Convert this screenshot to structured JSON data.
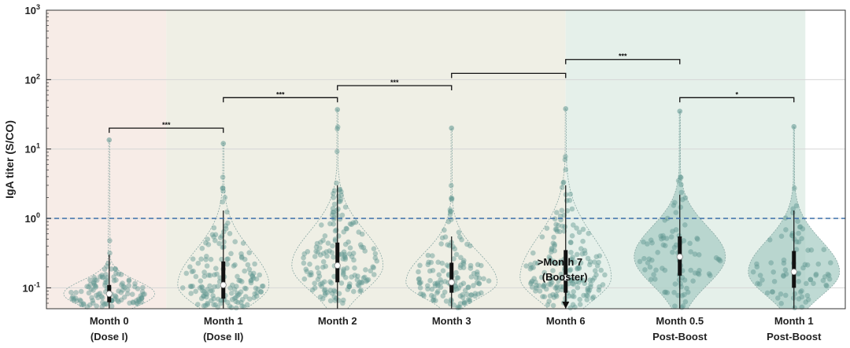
{
  "chart_data": {
    "type": "violin",
    "ylabel": "IgA titer (S/CO)",
    "yscale": "log",
    "ylim": [
      0.05,
      1000
    ],
    "ytick_base": "10",
    "yticks": [
      {
        "value": 0.1,
        "exp": "-1"
      },
      {
        "value": 1,
        "exp": "0"
      },
      {
        "value": 10,
        "exp": "1"
      },
      {
        "value": 100,
        "exp": "2"
      },
      {
        "value": 1000,
        "exp": "3"
      }
    ],
    "threshold": 1.0,
    "phases": [
      {
        "name": "pre-vaccination",
        "x_range": [
          -0.05,
          1.0
        ],
        "color": "#f7ece7"
      },
      {
        "name": "primary-series",
        "x_range": [
          1.0,
          4.5
        ],
        "color": "#efefe5"
      },
      {
        "name": "post-booster",
        "x_range": [
          4.5,
          6.6
        ],
        "color": "#e5f0ea"
      }
    ],
    "categories": [
      {
        "line1": "Month 0",
        "line2": "(Dose I)",
        "x": 0.5,
        "median": 0.082,
        "q1": 0.062,
        "q3": 0.11,
        "wlo": 0.05,
        "whi": 0.3,
        "max": 13.5,
        "n": 120,
        "filled": false
      },
      {
        "line1": "Month 1",
        "line2": "(Dose II)",
        "x": 1.5,
        "median": 0.11,
        "q1": 0.07,
        "q3": 0.24,
        "wlo": 0.05,
        "whi": 1.3,
        "max": 12,
        "n": 160,
        "filled": false
      },
      {
        "line1": "Month 2",
        "line2": "",
        "x": 2.5,
        "median": 0.21,
        "q1": 0.12,
        "q3": 0.45,
        "wlo": 0.05,
        "whi": 3.0,
        "max": 37,
        "n": 170,
        "filled": false
      },
      {
        "line1": "Month 3",
        "line2": "",
        "x": 3.5,
        "median": 0.12,
        "q1": 0.085,
        "q3": 0.23,
        "wlo": 0.05,
        "whi": 0.55,
        "max": 20,
        "n": 140,
        "filled": false
      },
      {
        "line1": "Month 6",
        "line2": "",
        "x": 4.5,
        "median": 0.14,
        "q1": 0.085,
        "q3": 0.35,
        "wlo": 0.05,
        "whi": 3.0,
        "max": 38,
        "n": 180,
        "filled": false
      },
      {
        "line1": "Month 0.5",
        "line2": "Post-Boost",
        "x": 5.5,
        "median": 0.28,
        "q1": 0.15,
        "q3": 0.55,
        "wlo": 0.05,
        "whi": 2.2,
        "max": 35,
        "n": 90,
        "filled": true
      },
      {
        "line1": "Month 1",
        "line2": "Post-Boost",
        "x": 6.5,
        "median": 0.17,
        "q1": 0.1,
        "q3": 0.34,
        "wlo": 0.05,
        "whi": 1.3,
        "max": 21,
        "n": 80,
        "filled": true
      }
    ],
    "significance": [
      {
        "from": 0,
        "to": 1,
        "y": 20,
        "label": "***"
      },
      {
        "from": 1,
        "to": 2,
        "y": 55,
        "label": "***"
      },
      {
        "from": 2,
        "to": 3,
        "y": 82,
        "label": "***"
      },
      {
        "from": 3,
        "to": 4,
        "y": 123,
        "label": ""
      },
      {
        "from": 4,
        "to": 5,
        "y": 195,
        "label": "***"
      },
      {
        "from": 5,
        "to": 6,
        "y": 55,
        "label": "*"
      }
    ],
    "booster": {
      "line1": ">Month 7",
      "line2": "(Booster)",
      "x": 4.5
    }
  }
}
